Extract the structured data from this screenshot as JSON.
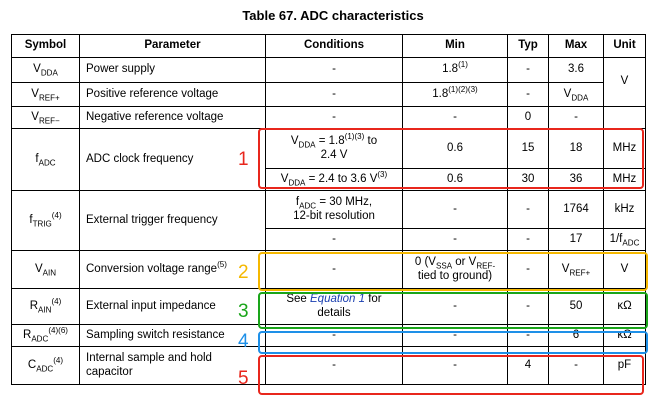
{
  "title": "Table 67. ADC characteristics",
  "headers": [
    "Symbol",
    "Parameter",
    "Conditions",
    "Min",
    "Typ",
    "Max",
    "Unit"
  ],
  "rows": {
    "vdda": {
      "symbol": {
        "base": "V",
        "sub": "DDA"
      },
      "parameter": "Power supply",
      "conditions": "-",
      "min": {
        "base": "1.8",
        "sup": "(1)"
      },
      "typ": "-",
      "max": "3.6"
    },
    "vrefp": {
      "symbol": {
        "base": "V",
        "sub": "REF+"
      },
      "parameter": "Positive reference voltage",
      "conditions": "-",
      "min": {
        "base": "1.8",
        "sup": "(1)(2)(3)"
      },
      "typ": "-",
      "max": {
        "base": "V",
        "sub": "DDA"
      }
    },
    "v_unit": "V",
    "vrefm": {
      "symbol": {
        "base": "V",
        "sub": "REF−"
      },
      "parameter": "Negative reference voltage",
      "conditions": "-",
      "min": "-",
      "typ": "0",
      "max": "-",
      "unit": ""
    },
    "fadc": {
      "symbol": {
        "base": "f",
        "sub": "ADC"
      },
      "parameter": "ADC clock frequency",
      "cond1": {
        "pre": "V",
        "sub": "DDA",
        "post": " = 1.8",
        "sup": "(1)(3)",
        "tail": " to",
        "line2": "2.4 V"
      },
      "min1": "0.6",
      "typ1": "15",
      "max1": "18",
      "unit1": "MHz",
      "cond2": {
        "pre": "V",
        "sub": "DDA",
        "post": " = 2.4 to 3.6 V",
        "sup": "(3)"
      },
      "min2": "0.6",
      "typ2": "30",
      "max2": "36",
      "unit2": "MHz"
    },
    "ftrig": {
      "symbol": {
        "base": "f",
        "sub": "TRIG",
        "sup": "(4)"
      },
      "parameter": "External trigger frequency",
      "cond1": {
        "pre": "f",
        "sub": "ADC",
        "post": " = 30 MHz,",
        "line2": "12-bit resolution"
      },
      "min1": "-",
      "typ1": "-",
      "max1": "1764",
      "unit1": "kHz",
      "cond2": "-",
      "min2": "-",
      "typ2": "-",
      "max2": "17",
      "unit2": {
        "base": "1/f",
        "sub": "ADC"
      }
    },
    "vain": {
      "symbol": {
        "base": "V",
        "sub": "AIN"
      },
      "parameter": "Conversion voltage range",
      "parameter_sup": "(5)",
      "conditions": "-",
      "min": {
        "line1_pre": "0 (V",
        "line1_sub": "SSA",
        "line1_post": " or V",
        "line1_sub2": "REF-",
        "line2": "tied to ground)"
      },
      "typ": "-",
      "max": {
        "base": "V",
        "sub": "REF+"
      },
      "unit": "V"
    },
    "rain": {
      "symbol": {
        "base": "R",
        "sub": "AIN",
        "sup": "(4)"
      },
      "parameter": "External input impedance",
      "cond": {
        "pre": "See ",
        "link": "Equation 1",
        "post": " for",
        "line2": "details"
      },
      "min": "-",
      "typ": "-",
      "max": "50",
      "unit": "κΩ"
    },
    "radc": {
      "symbol": {
        "base": "R",
        "sub": "ADC",
        "sup": "(4)(6)"
      },
      "parameter": "Sampling switch resistance",
      "conditions": "-",
      "min": "-",
      "typ": "-",
      "max": "6",
      "unit": "κΩ"
    },
    "cadc": {
      "symbol": {
        "base": "C",
        "sub": "ADC",
        "sup": "(4)"
      },
      "parameter_line1": "Internal sample and hold",
      "parameter_line2": "capacitor",
      "conditions": "-",
      "min": "-",
      "typ": "4",
      "max": "-",
      "unit": "pF"
    }
  },
  "annotations": [
    {
      "label": "1",
      "color": "#e8261c"
    },
    {
      "label": "2",
      "color": "#f5b800"
    },
    {
      "label": "3",
      "color": "#1aa51a"
    },
    {
      "label": "4",
      "color": "#1e90e8"
    },
    {
      "label": "5",
      "color": "#e8261c"
    }
  ]
}
